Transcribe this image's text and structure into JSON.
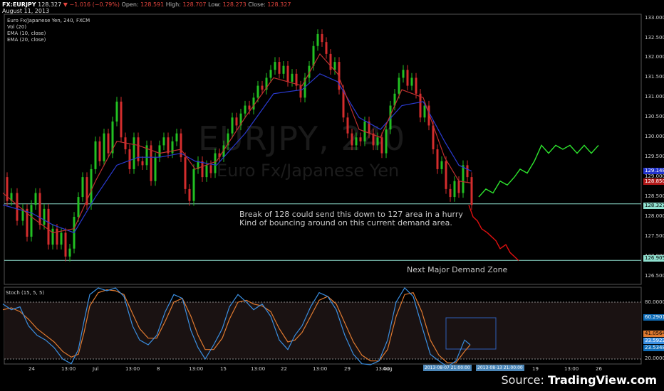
{
  "header": {
    "symbol": "FX:EURJPY",
    "last": "128.327",
    "change_arrow": "▼",
    "change": "−1.016 (−0.79%)",
    "open_label": "Open:",
    "open": "128.591",
    "high_label": "High:",
    "high": "128.707",
    "low_label": "Low:",
    "low": "128.273",
    "close_label": "Close:",
    "close": "128.327",
    "date": "August 11, 2013"
  },
  "legend": {
    "title": "Euro Fx/Japanese Yen, 240, FXCM",
    "items": [
      "Vol (20)",
      "EMA (10, close)",
      "EMA (20, close)"
    ]
  },
  "watermark": {
    "line1": "EURJPY, 240",
    "line2": "Euro Fx/Japanese Yen"
  },
  "price_axis": [
    "133.000",
    "132.500",
    "132.000",
    "131.500",
    "131.000",
    "130.500",
    "130.000",
    "129.500",
    "129.000",
    "128.500",
    "128.000",
    "127.500",
    "127.000",
    "126.500"
  ],
  "price_tags": {
    "ema_blue": "129.148",
    "ema_red": "128.850",
    "last": "128.327",
    "demand": "126.905"
  },
  "annotations": {
    "line1": "Break of 128 could send this down to 127 area in a hurry",
    "line2": "Kind of bouncing around on this current demand area.",
    "zone": "Next Major Demand Zone"
  },
  "stoch": {
    "title": "Stoch (15, 5, 5)",
    "axis": [
      "80.0000",
      "20.0000"
    ],
    "tags": [
      "60.2901",
      "41.0564",
      "33.5922",
      "23.5348"
    ]
  },
  "time_axis": [
    "24",
    "13:00",
    "Jul",
    "13:00",
    "8",
    "13:00",
    "15",
    "13:00",
    "22",
    "13:00",
    "29",
    "13:00",
    "Aug",
    "13:00",
    "19",
    "13:00",
    "26"
  ],
  "date_tags": [
    "2013-08-07 21:00:00",
    "2013-08-13 21:00:00"
  ],
  "source": {
    "prefix": "Source: ",
    "brand": "TradingView.com"
  },
  "colors": {
    "bg": "#000000",
    "up": "#22c022",
    "down": "#d42d2d",
    "ema10": "#c03030",
    "ema20": "#2a3ad0",
    "scenario_up": "#2ee62e",
    "scenario_down": "#e01010",
    "level": "#8fe0cf",
    "stoch_k": "#3a8ee0",
    "stoch_d": "#e07a30"
  },
  "chart_data": {
    "type": "line",
    "instrument": "EURJPY",
    "interval_minutes": 240,
    "price_range": [
      126.3,
      133.1
    ],
    "levels": [
      128.327,
      126.905
    ],
    "close_path": [
      [
        0,
        129.0
      ],
      [
        6,
        128.4
      ],
      [
        12,
        128.6
      ],
      [
        20,
        127.9
      ],
      [
        28,
        128.2
      ],
      [
        34,
        127.5
      ],
      [
        40,
        128.3
      ],
      [
        46,
        128.6
      ],
      [
        52,
        127.8
      ],
      [
        58,
        128.2
      ],
      [
        64,
        127.3
      ],
      [
        70,
        127.7
      ],
      [
        76,
        127.3
      ],
      [
        82,
        127.6
      ],
      [
        88,
        127.0
      ],
      [
        94,
        127.2
      ],
      [
        100,
        128.0
      ],
      [
        106,
        128.5
      ],
      [
        112,
        129.0
      ],
      [
        118,
        128.3
      ],
      [
        124,
        129.2
      ],
      [
        130,
        129.9
      ],
      [
        136,
        129.4
      ],
      [
        142,
        130.1
      ],
      [
        148,
        129.6
      ],
      [
        154,
        130.4
      ],
      [
        160,
        130.9
      ],
      [
        166,
        130.0
      ],
      [
        172,
        129.7
      ],
      [
        178,
        129.2
      ],
      [
        184,
        130.0
      ],
      [
        190,
        129.4
      ],
      [
        196,
        129.3
      ],
      [
        202,
        129.8
      ],
      [
        208,
        128.9
      ],
      [
        214,
        129.5
      ],
      [
        220,
        129.8
      ],
      [
        226,
        130.0
      ],
      [
        232,
        129.6
      ],
      [
        238,
        129.9
      ],
      [
        244,
        130.1
      ],
      [
        250,
        129.5
      ],
      [
        256,
        128.7
      ],
      [
        262,
        128.4
      ],
      [
        268,
        129.2
      ],
      [
        274,
        129.4
      ],
      [
        280,
        129.0
      ],
      [
        286,
        129.3
      ],
      [
        292,
        129.1
      ],
      [
        298,
        129.6
      ],
      [
        304,
        129.5
      ],
      [
        310,
        129.8
      ],
      [
        316,
        130.1
      ],
      [
        322,
        130.5
      ],
      [
        328,
        130.3
      ],
      [
        334,
        130.6
      ],
      [
        340,
        130.8
      ],
      [
        346,
        130.7
      ],
      [
        352,
        131.0
      ],
      [
        358,
        131.3
      ],
      [
        364,
        131.2
      ],
      [
        370,
        131.5
      ],
      [
        376,
        131.7
      ],
      [
        382,
        131.9
      ],
      [
        388,
        131.6
      ],
      [
        394,
        131.8
      ],
      [
        400,
        131.4
      ],
      [
        406,
        131.6
      ],
      [
        412,
        131.3
      ],
      [
        418,
        131.0
      ],
      [
        424,
        131.5
      ],
      [
        430,
        131.8
      ],
      [
        436,
        132.3
      ],
      [
        442,
        132.6
      ],
      [
        448,
        132.4
      ],
      [
        454,
        132.1
      ],
      [
        460,
        131.7
      ],
      [
        466,
        131.9
      ],
      [
        472,
        131.2
      ],
      [
        478,
        130.5
      ],
      [
        484,
        130.1
      ],
      [
        490,
        129.8
      ],
      [
        496,
        130.0
      ],
      [
        502,
        129.9
      ],
      [
        508,
        130.4
      ],
      [
        514,
        130.1
      ],
      [
        520,
        129.8
      ],
      [
        526,
        130.0
      ],
      [
        532,
        129.6
      ],
      [
        538,
        130.2
      ],
      [
        544,
        130.8
      ],
      [
        550,
        131.1
      ],
      [
        556,
        131.5
      ],
      [
        562,
        131.7
      ],
      [
        568,
        131.3
      ],
      [
        574,
        131.5
      ],
      [
        580,
        131.1
      ],
      [
        586,
        130.5
      ],
      [
        592,
        130.8
      ],
      [
        598,
        130.3
      ],
      [
        604,
        129.7
      ],
      [
        610,
        129.2
      ],
      [
        616,
        129.4
      ],
      [
        622,
        128.7
      ],
      [
        628,
        128.5
      ],
      [
        634,
        128.9
      ],
      [
        640,
        128.6
      ],
      [
        646,
        129.3
      ],
      [
        652,
        129.0
      ],
      [
        658,
        128.3
      ]
    ],
    "ema10_path": [
      [
        0,
        128.6
      ],
      [
        40,
        128.0
      ],
      [
        70,
        127.6
      ],
      [
        100,
        127.7
      ],
      [
        130,
        128.9
      ],
      [
        160,
        129.9
      ],
      [
        190,
        129.8
      ],
      [
        220,
        129.6
      ],
      [
        250,
        129.7
      ],
      [
        270,
        129.2
      ],
      [
        300,
        129.4
      ],
      [
        340,
        130.5
      ],
      [
        380,
        131.5
      ],
      [
        420,
        131.3
      ],
      [
        445,
        132.1
      ],
      [
        470,
        131.6
      ],
      [
        500,
        130.2
      ],
      [
        530,
        130.0
      ],
      [
        560,
        131.2
      ],
      [
        590,
        131.0
      ],
      [
        620,
        129.5
      ],
      [
        640,
        128.9
      ],
      [
        658,
        128.85
      ]
    ],
    "ema20_path": [
      [
        0,
        128.3
      ],
      [
        40,
        128.1
      ],
      [
        70,
        127.8
      ],
      [
        100,
        127.6
      ],
      [
        130,
        128.5
      ],
      [
        160,
        129.3
      ],
      [
        190,
        129.5
      ],
      [
        220,
        129.5
      ],
      [
        250,
        129.6
      ],
      [
        270,
        129.4
      ],
      [
        300,
        129.3
      ],
      [
        340,
        130.1
      ],
      [
        380,
        131.1
      ],
      [
        420,
        131.2
      ],
      [
        445,
        131.6
      ],
      [
        470,
        131.4
      ],
      [
        500,
        130.5
      ],
      [
        530,
        130.2
      ],
      [
        560,
        130.8
      ],
      [
        590,
        130.9
      ],
      [
        620,
        129.9
      ],
      [
        640,
        129.3
      ],
      [
        658,
        129.148
      ]
    ],
    "scenario_up": [
      [
        672,
        128.5
      ],
      [
        682,
        128.7
      ],
      [
        692,
        128.6
      ],
      [
        702,
        128.9
      ],
      [
        712,
        128.8
      ],
      [
        722,
        129.0
      ],
      [
        730,
        129.2
      ],
      [
        740,
        129.1
      ],
      [
        750,
        129.4
      ],
      [
        760,
        129.8
      ],
      [
        770,
        129.6
      ],
      [
        780,
        129.8
      ],
      [
        790,
        129.7
      ],
      [
        800,
        129.8
      ],
      [
        810,
        129.6
      ],
      [
        820,
        129.8
      ],
      [
        830,
        129.6
      ],
      [
        840,
        129.8
      ]
    ],
    "scenario_down": [
      [
        658,
        128.3
      ],
      [
        664,
        128.0
      ],
      [
        670,
        127.9
      ],
      [
        676,
        127.7
      ],
      [
        684,
        127.6
      ],
      [
        690,
        127.5
      ],
      [
        696,
        127.4
      ],
      [
        702,
        127.2
      ],
      [
        710,
        127.3
      ],
      [
        716,
        127.1
      ],
      [
        722,
        127.0
      ],
      [
        728,
        126.9
      ]
    ],
    "stoch_range": [
      0,
      100
    ],
    "stoch_levels": [
      80,
      20
    ],
    "stoch_k": [
      [
        0,
        78
      ],
      [
        12,
        72
      ],
      [
        24,
        75
      ],
      [
        36,
        55
      ],
      [
        48,
        45
      ],
      [
        60,
        40
      ],
      [
        72,
        32
      ],
      [
        84,
        20
      ],
      [
        96,
        15
      ],
      [
        106,
        30
      ],
      [
        114,
        60
      ],
      [
        122,
        88
      ],
      [
        134,
        95
      ],
      [
        146,
        92
      ],
      [
        158,
        95
      ],
      [
        170,
        86
      ],
      [
        182,
        55
      ],
      [
        192,
        40
      ],
      [
        204,
        35
      ],
      [
        216,
        45
      ],
      [
        228,
        70
      ],
      [
        240,
        88
      ],
      [
        252,
        84
      ],
      [
        264,
        50
      ],
      [
        274,
        32
      ],
      [
        284,
        20
      ],
      [
        296,
        35
      ],
      [
        308,
        52
      ],
      [
        318,
        75
      ],
      [
        330,
        88
      ],
      [
        342,
        80
      ],
      [
        352,
        72
      ],
      [
        364,
        78
      ],
      [
        376,
        65
      ],
      [
        388,
        40
      ],
      [
        400,
        30
      ],
      [
        410,
        45
      ],
      [
        420,
        55
      ],
      [
        432,
        75
      ],
      [
        444,
        90
      ],
      [
        456,
        86
      ],
      [
        468,
        72
      ],
      [
        480,
        45
      ],
      [
        492,
        25
      ],
      [
        504,
        15
      ],
      [
        516,
        14
      ],
      [
        528,
        18
      ],
      [
        540,
        40
      ],
      [
        552,
        80
      ],
      [
        564,
        95
      ],
      [
        576,
        86
      ],
      [
        588,
        55
      ],
      [
        600,
        25
      ],
      [
        612,
        18
      ],
      [
        624,
        12
      ],
      [
        636,
        18
      ],
      [
        648,
        40
      ],
      [
        656,
        35
      ]
    ],
    "stoch_d": [
      [
        0,
        72
      ],
      [
        12,
        74
      ],
      [
        24,
        70
      ],
      [
        36,
        62
      ],
      [
        48,
        52
      ],
      [
        60,
        45
      ],
      [
        72,
        38
      ],
      [
        84,
        28
      ],
      [
        96,
        22
      ],
      [
        106,
        25
      ],
      [
        114,
        48
      ],
      [
        122,
        76
      ],
      [
        134,
        90
      ],
      [
        146,
        93
      ],
      [
        158,
        92
      ],
      [
        170,
        88
      ],
      [
        182,
        68
      ],
      [
        192,
        52
      ],
      [
        204,
        42
      ],
      [
        216,
        42
      ],
      [
        228,
        60
      ],
      [
        240,
        80
      ],
      [
        252,
        84
      ],
      [
        264,
        65
      ],
      [
        274,
        45
      ],
      [
        284,
        30
      ],
      [
        296,
        30
      ],
      [
        308,
        42
      ],
      [
        318,
        62
      ],
      [
        330,
        80
      ],
      [
        342,
        82
      ],
      [
        352,
        78
      ],
      [
        364,
        76
      ],
      [
        376,
        70
      ],
      [
        388,
        52
      ],
      [
        400,
        38
      ],
      [
        410,
        40
      ],
      [
        420,
        48
      ],
      [
        432,
        65
      ],
      [
        444,
        82
      ],
      [
        456,
        86
      ],
      [
        468,
        78
      ],
      [
        480,
        58
      ],
      [
        492,
        38
      ],
      [
        504,
        24
      ],
      [
        516,
        18
      ],
      [
        528,
        18
      ],
      [
        540,
        30
      ],
      [
        552,
        65
      ],
      [
        564,
        88
      ],
      [
        576,
        90
      ],
      [
        588,
        70
      ],
      [
        600,
        40
      ],
      [
        612,
        24
      ],
      [
        624,
        16
      ],
      [
        636,
        16
      ],
      [
        648,
        28
      ],
      [
        656,
        35
      ]
    ]
  }
}
